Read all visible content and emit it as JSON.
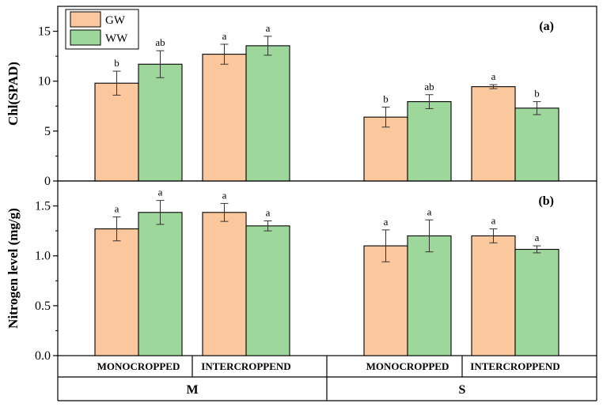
{
  "chart_data": [
    {
      "type": "bar",
      "panel_label": "(a)",
      "ylabel": "Chl(SPAD)",
      "ylim": [
        0,
        17.5
      ],
      "yticks": [
        0,
        5,
        10,
        15
      ],
      "categories": [
        "MONOCROPPED",
        "INTERCROPPEND",
        "MONOCROPPED",
        "INTERCROPPEND"
      ],
      "groups": [
        "M",
        "S"
      ],
      "series": [
        {
          "name": "GW",
          "color": "#FBC79C",
          "values": [
            9.8,
            12.7,
            6.4,
            9.45
          ],
          "errors": [
            1.2,
            1.0,
            1.0,
            0.2
          ],
          "letters": [
            "b",
            "a",
            "b",
            "a"
          ]
        },
        {
          "name": "WW",
          "color": "#9DD79B",
          "values": [
            11.7,
            13.55,
            7.95,
            7.3
          ],
          "errors": [
            1.35,
            0.95,
            0.7,
            0.65
          ],
          "letters": [
            "ab",
            "a",
            "ab",
            "b"
          ]
        }
      ]
    },
    {
      "type": "bar",
      "panel_label": "(b)",
      "ylabel": "Nitrogen level (mg/g)",
      "ylim": [
        0,
        1.75
      ],
      "yticks": [
        "0.0",
        "0.5",
        "1.0",
        "1.5"
      ],
      "categories": [
        "MONOCROPPED",
        "INTERCROPPEND",
        "MONOCROPPED",
        "INTERCROPPEND"
      ],
      "groups": [
        "M",
        "S"
      ],
      "series": [
        {
          "name": "GW",
          "color": "#FBC79C",
          "values": [
            1.27,
            1.435,
            1.1,
            1.2
          ],
          "errors": [
            0.12,
            0.09,
            0.16,
            0.07
          ],
          "letters": [
            "a",
            "a",
            "a",
            "a"
          ]
        },
        {
          "name": "WW",
          "color": "#9DD79B",
          "values": [
            1.435,
            1.3,
            1.2,
            1.065
          ],
          "errors": [
            0.12,
            0.05,
            0.16,
            0.035
          ],
          "letters": [
            "a",
            "a",
            "a",
            "a"
          ]
        }
      ]
    }
  ],
  "legend": [
    {
      "name": "GW",
      "color": "#FBC79C"
    },
    {
      "name": "WW",
      "color": "#9DD79B"
    }
  ]
}
